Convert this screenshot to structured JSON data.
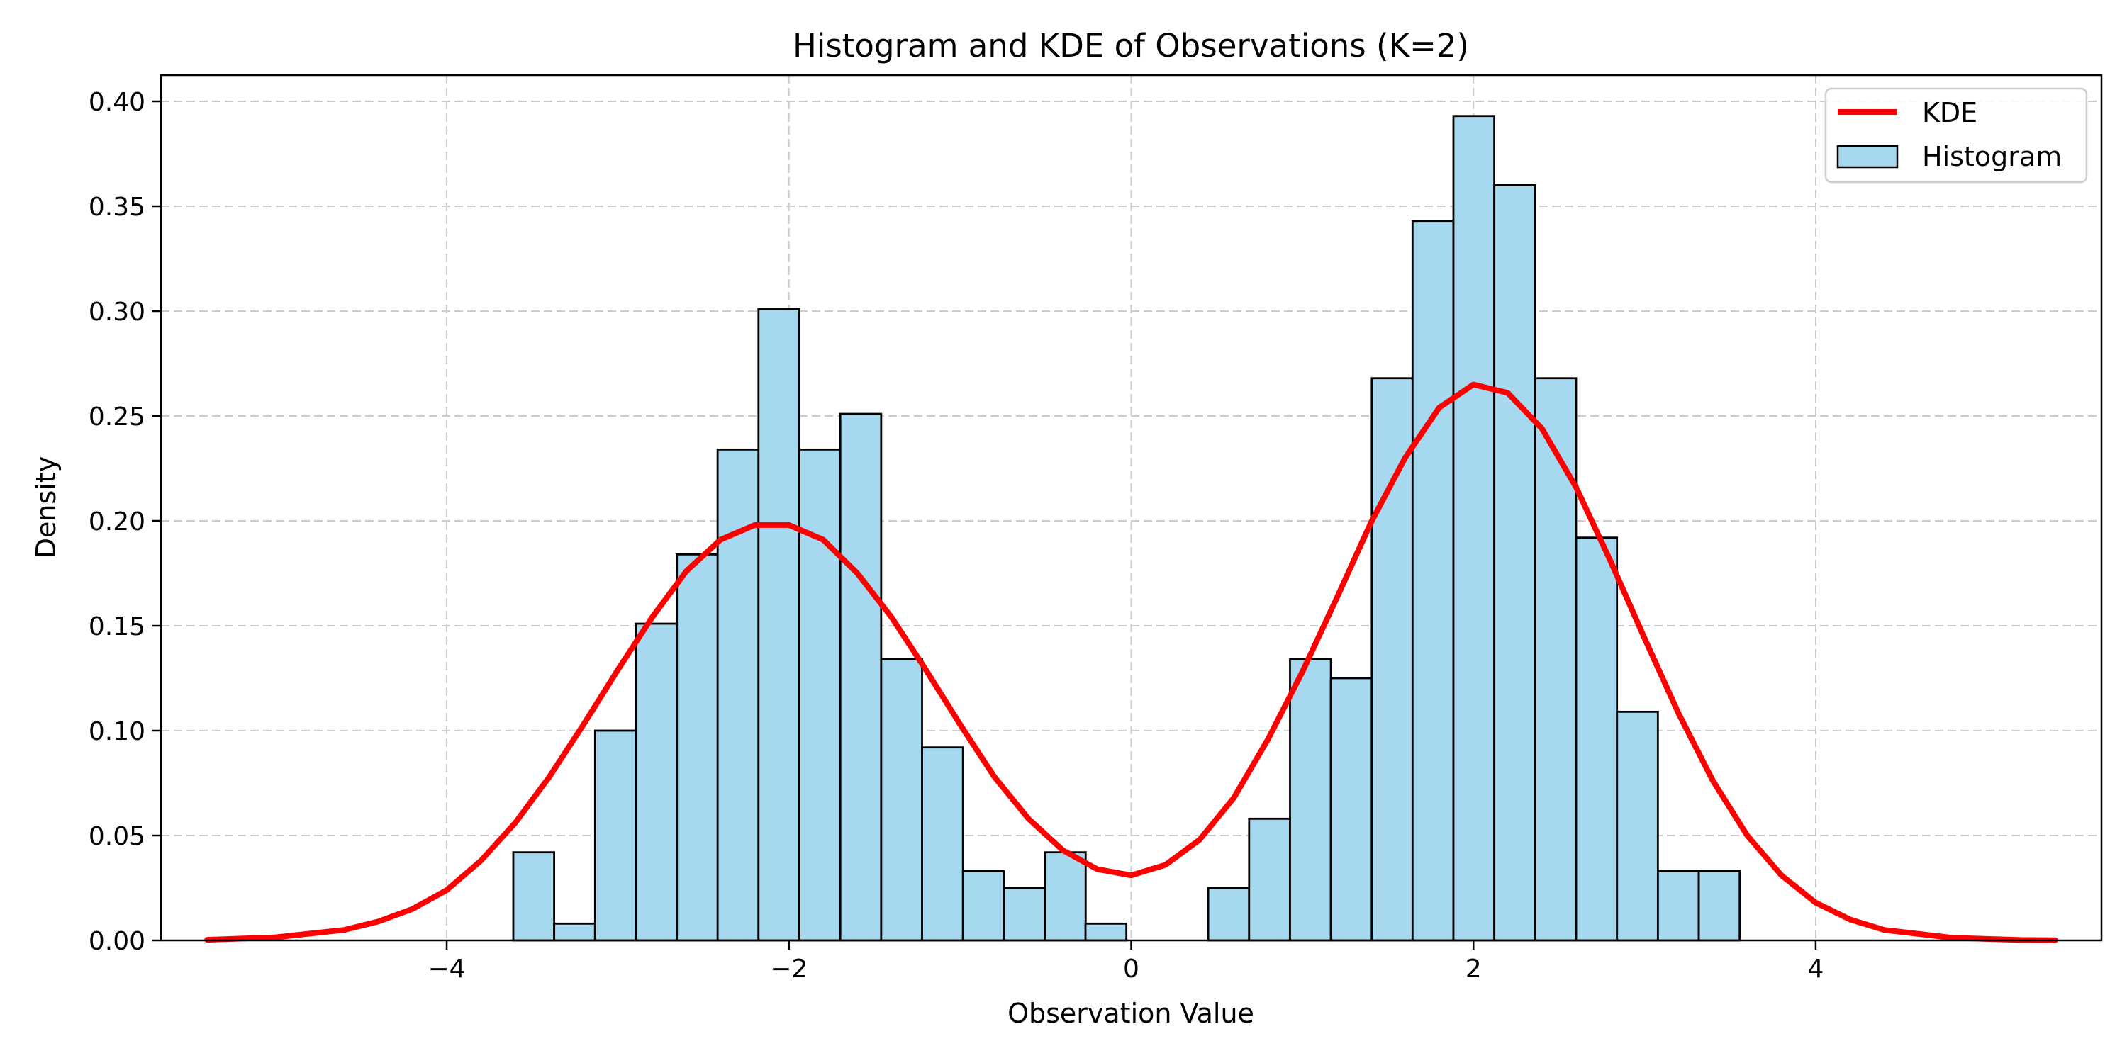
{
  "chart_data": {
    "type": "bar",
    "title": "Histogram and KDE of Observations (K=2)",
    "xlabel": "Observation Value",
    "ylabel": "Density",
    "xlim": [
      -5.67,
      5.67
    ],
    "ylim": [
      0,
      0.4125
    ],
    "x_ticks": [
      -4,
      -2,
      0,
      2,
      4
    ],
    "x_tick_labels": [
      "−4",
      "−2",
      "0",
      "2",
      "4"
    ],
    "y_ticks": [
      0,
      0.05,
      0.1,
      0.15,
      0.2,
      0.25,
      0.3,
      0.35,
      0.4
    ],
    "y_tick_labels": [
      "0.00",
      "0.05",
      "0.10",
      "0.15",
      "0.20",
      "0.25",
      "0.30",
      "0.35",
      "0.40"
    ],
    "grid": true,
    "legend": {
      "position": "top-right",
      "entries": [
        "KDE",
        "Histogram"
      ]
    },
    "colors": {
      "histogram_fill": "#a6d9f0",
      "histogram_edge": "#000000",
      "kde_line": "#ff0000",
      "grid": "#cccccc"
    },
    "histogram": {
      "name": "Histogram",
      "bin_width": 0.2388,
      "bin_starts": [
        -3.611,
        -3.372,
        -3.133,
        -2.894,
        -2.655,
        -2.417,
        -2.178,
        -1.939,
        -1.7,
        -1.461,
        -1.222,
        -0.983,
        -0.744,
        -0.505,
        -0.267,
        -0.028,
        0.211,
        0.45,
        0.689,
        0.928,
        1.167,
        1.406,
        1.644,
        1.883,
        2.122,
        2.361,
        2.6,
        2.839,
        3.078,
        3.317
      ],
      "values": [
        0.042,
        0.008,
        0.1,
        0.151,
        0.184,
        0.234,
        0.301,
        0.234,
        0.251,
        0.134,
        0.092,
        0.033,
        0.025,
        0.042,
        0.008,
        0.0,
        0.0,
        0.025,
        0.058,
        0.134,
        0.125,
        0.268,
        0.343,
        0.393,
        0.36,
        0.268,
        0.192,
        0.109,
        0.033,
        0.033
      ]
    },
    "kde": {
      "name": "KDE",
      "x": [
        -5.4,
        -5.0,
        -4.6,
        -4.4,
        -4.2,
        -4.0,
        -3.8,
        -3.6,
        -3.4,
        -3.2,
        -3.0,
        -2.8,
        -2.6,
        -2.4,
        -2.2,
        -2.0,
        -1.8,
        -1.6,
        -1.4,
        -1.2,
        -1.0,
        -0.8,
        -0.6,
        -0.4,
        -0.2,
        0.0,
        0.2,
        0.4,
        0.6,
        0.8,
        1.0,
        1.2,
        1.4,
        1.6,
        1.8,
        2.0,
        2.2,
        2.4,
        2.6,
        2.8,
        3.0,
        3.2,
        3.4,
        3.6,
        3.8,
        4.0,
        4.2,
        4.4,
        4.8,
        5.2,
        5.4
      ],
      "y": [
        0.0003,
        0.0015,
        0.005,
        0.009,
        0.015,
        0.024,
        0.038,
        0.056,
        0.078,
        0.103,
        0.129,
        0.154,
        0.176,
        0.191,
        0.198,
        0.198,
        0.191,
        0.175,
        0.154,
        0.129,
        0.103,
        0.078,
        0.058,
        0.043,
        0.034,
        0.031,
        0.036,
        0.048,
        0.068,
        0.096,
        0.128,
        0.163,
        0.199,
        0.23,
        0.254,
        0.265,
        0.261,
        0.244,
        0.216,
        0.181,
        0.144,
        0.108,
        0.076,
        0.05,
        0.031,
        0.018,
        0.01,
        0.005,
        0.0012,
        0.0002,
        0.0001
      ]
    }
  }
}
